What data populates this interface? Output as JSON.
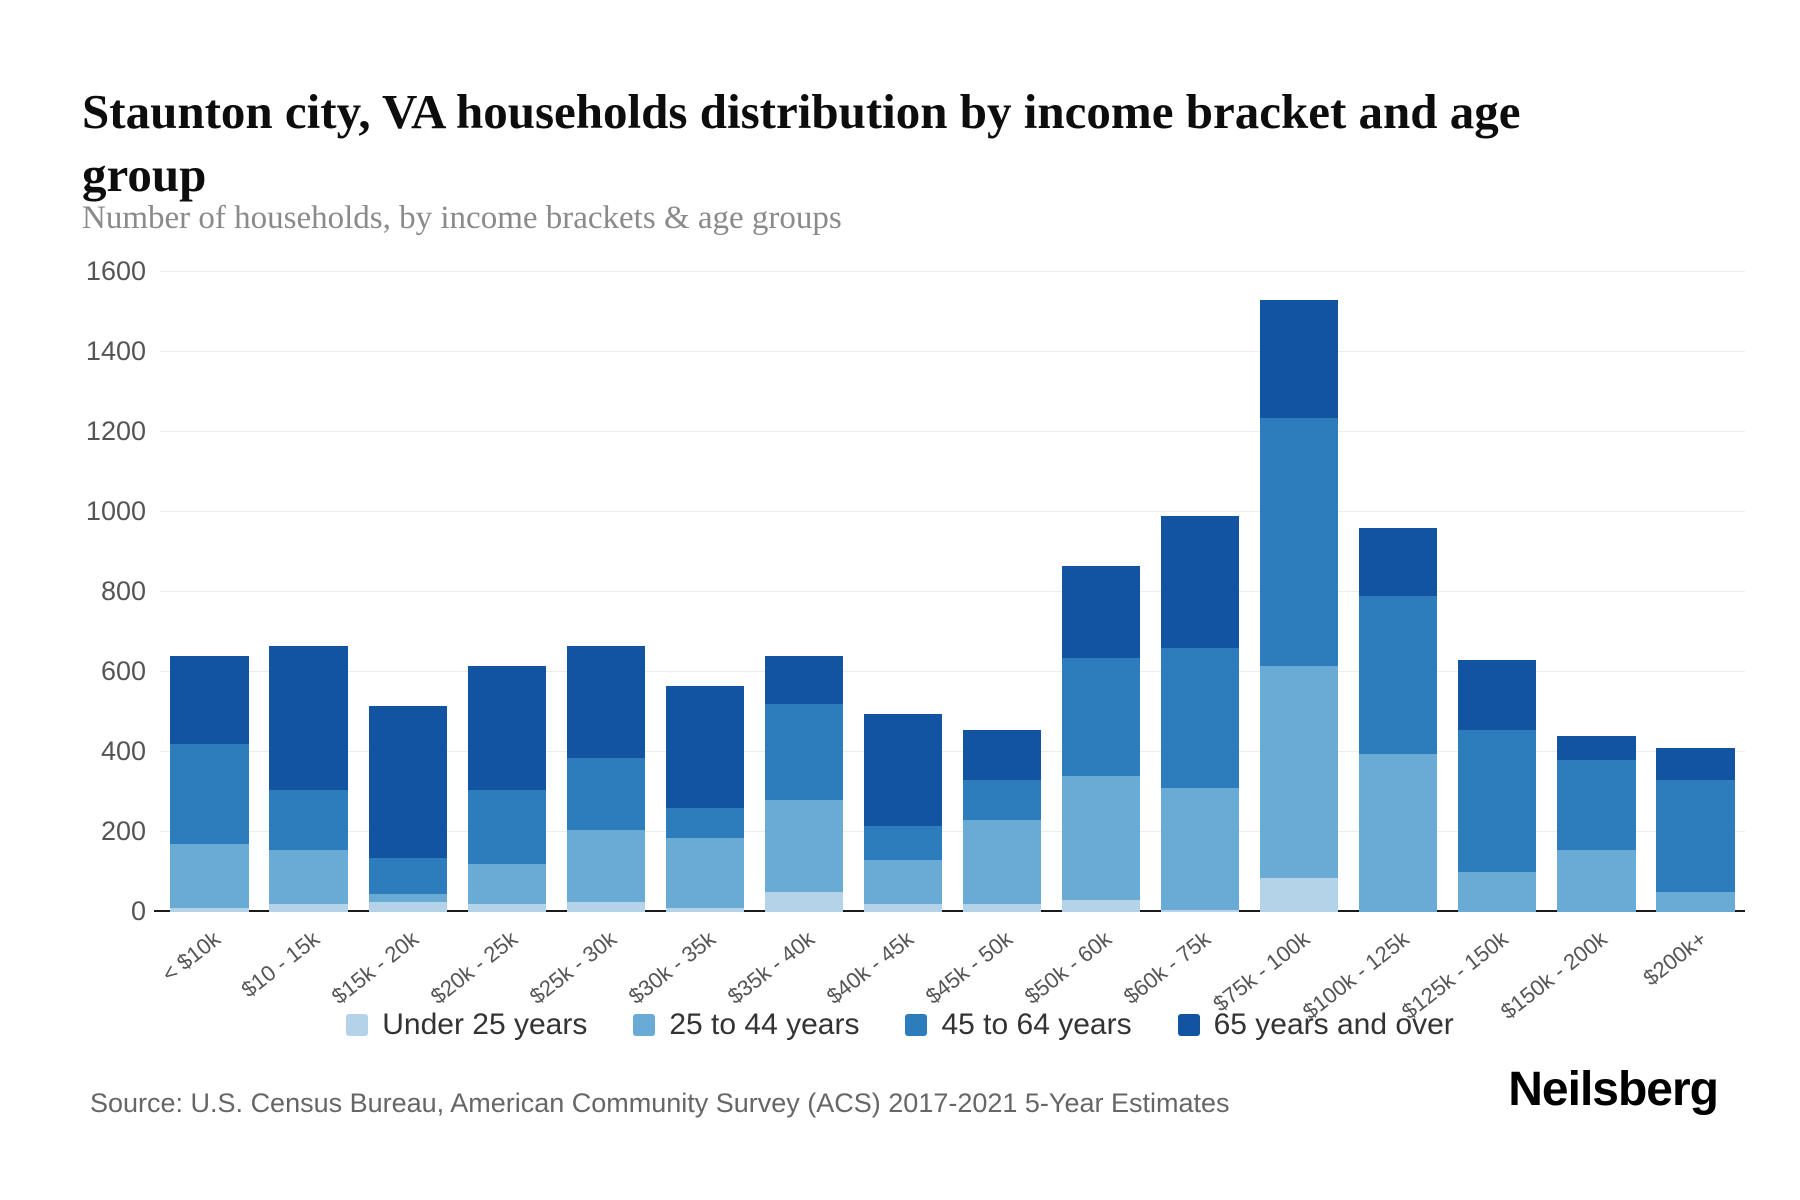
{
  "header": {
    "title": "Staunton city, VA households distribution by income bracket and age group",
    "subtitle": "Number of households, by income brackets & age groups"
  },
  "footer": {
    "source": "Source: U.S. Census Bureau, American Community Survey (ACS) 2017-2021 5-Year Estimates",
    "brand": "Neilsberg"
  },
  "chart_data": {
    "type": "bar",
    "stacked": true,
    "title": "Staunton city, VA households distribution by income bracket and age group",
    "xlabel": "",
    "ylabel": "Number of households",
    "ylim": [
      0,
      1600
    ],
    "yticks": [
      0,
      200,
      400,
      600,
      800,
      1000,
      1200,
      1400,
      1600
    ],
    "grid": true,
    "legend_position": "bottom",
    "categories": [
      "< $10k",
      "$10 - 15k",
      "$15k - 20k",
      "$20k - 25k",
      "$25k - 30k",
      "$30k - 35k",
      "$35k - 40k",
      "$40k - 45k",
      "$45k - 50k",
      "$50k - 60k",
      "$60k - 75k",
      "$75k - 100k",
      "$100k - 125k",
      "$125k - 150k",
      "$150k - 200k",
      "$200k+"
    ],
    "series": [
      {
        "name": "Under 25 years",
        "color": "#b5d3e8",
        "values": [
          10,
          20,
          25,
          20,
          25,
          10,
          50,
          20,
          20,
          30,
          5,
          85,
          0,
          0,
          0,
          0
        ]
      },
      {
        "name": "25 to 44 years",
        "color": "#6aabd6",
        "values": [
          160,
          135,
          20,
          100,
          180,
          175,
          230,
          110,
          210,
          310,
          305,
          530,
          395,
          100,
          155,
          50
        ]
      },
      {
        "name": "45 to 64 years",
        "color": "#2d7cbb",
        "values": [
          250,
          150,
          90,
          185,
          180,
          75,
          240,
          85,
          100,
          295,
          350,
          620,
          395,
          355,
          225,
          280
        ]
      },
      {
        "name": "65 years and over",
        "color": "#1253a2",
        "values": [
          220,
          360,
          380,
          310,
          280,
          305,
          120,
          280,
          125,
          230,
          330,
          295,
          170,
          175,
          60,
          80
        ]
      }
    ]
  }
}
